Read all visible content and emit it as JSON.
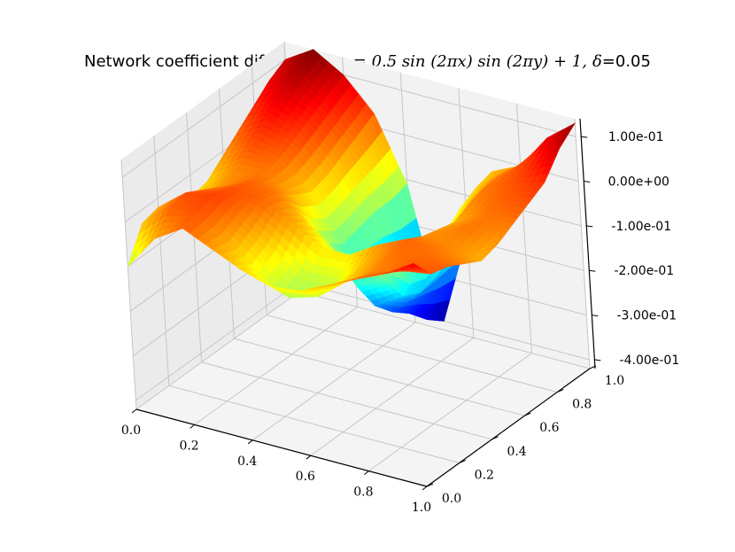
{
  "chart_data": {
    "type": "surface3d",
    "title": {
      "prefix": "Network coefficient difference.",
      "formula": "q = 0.5 sin (2πx) sin (2πy) + 1,",
      "delta_symbol": "δ",
      "delta_value": "=0.05"
    },
    "x": {
      "ticks": [
        "0.0",
        "0.2",
        "0.4",
        "0.6",
        "0.8",
        "1.0"
      ],
      "range": [
        0,
        1
      ]
    },
    "y": {
      "ticks": [
        "0.0",
        "0.2",
        "0.4",
        "0.6",
        "0.8",
        "1.0"
      ],
      "range": [
        0,
        1
      ]
    },
    "z": {
      "ticks": [
        "-4.00e-01",
        "-3.00e-01",
        "-2.00e-01",
        "-1.00e-01",
        "0.00e+00",
        "1.00e-01"
      ],
      "range": [
        -0.42,
        0.14
      ]
    },
    "colormap": "jet",
    "grid": true,
    "grid_size": 11,
    "z_grid": [
      [
        -0.1,
        -0.02,
        0.02,
        -0.01,
        -0.04,
        -0.06,
        -0.05,
        -0.02,
        0.01,
        0.04,
        0.08
      ],
      [
        -0.03,
        0.02,
        0.03,
        -0.02,
        -0.07,
        -0.11,
        -0.09,
        -0.04,
        0.0,
        0.02,
        0.03
      ],
      [
        -0.02,
        0.03,
        0.04,
        0.0,
        -0.05,
        -0.1,
        -0.09,
        -0.03,
        0.01,
        0.02,
        0.02
      ],
      [
        -0.04,
        0.01,
        0.03,
        0.02,
        -0.01,
        -0.05,
        -0.05,
        -0.01,
        0.02,
        0.01,
        0.0
      ],
      [
        -0.05,
        -0.01,
        0.02,
        0.01,
        -0.04,
        -0.09,
        -0.1,
        -0.05,
        0.0,
        0.0,
        -0.02
      ],
      [
        -0.04,
        0.0,
        0.01,
        -0.02,
        -0.11,
        -0.19,
        -0.16,
        -0.08,
        -0.01,
        0.01,
        -0.01
      ],
      [
        -0.01,
        0.03,
        0.02,
        -0.04,
        -0.14,
        -0.26,
        -0.22,
        -0.1,
        -0.02,
        0.01,
        0.01
      ],
      [
        0.02,
        0.06,
        0.04,
        -0.03,
        -0.13,
        -0.3,
        -0.24,
        -0.09,
        0.0,
        0.02,
        0.03
      ],
      [
        0.05,
        0.09,
        0.06,
        -0.01,
        -0.12,
        -0.33,
        -0.23,
        -0.06,
        0.01,
        0.03,
        0.05
      ],
      [
        0.08,
        0.12,
        0.08,
        0.01,
        -0.12,
        -0.37,
        -0.21,
        -0.04,
        0.01,
        0.05,
        0.1
      ],
      [
        0.1,
        0.14,
        0.1,
        0.03,
        -0.11,
        -0.4,
        -0.19,
        -0.03,
        0.0,
        0.08,
        0.13
      ]
    ]
  }
}
